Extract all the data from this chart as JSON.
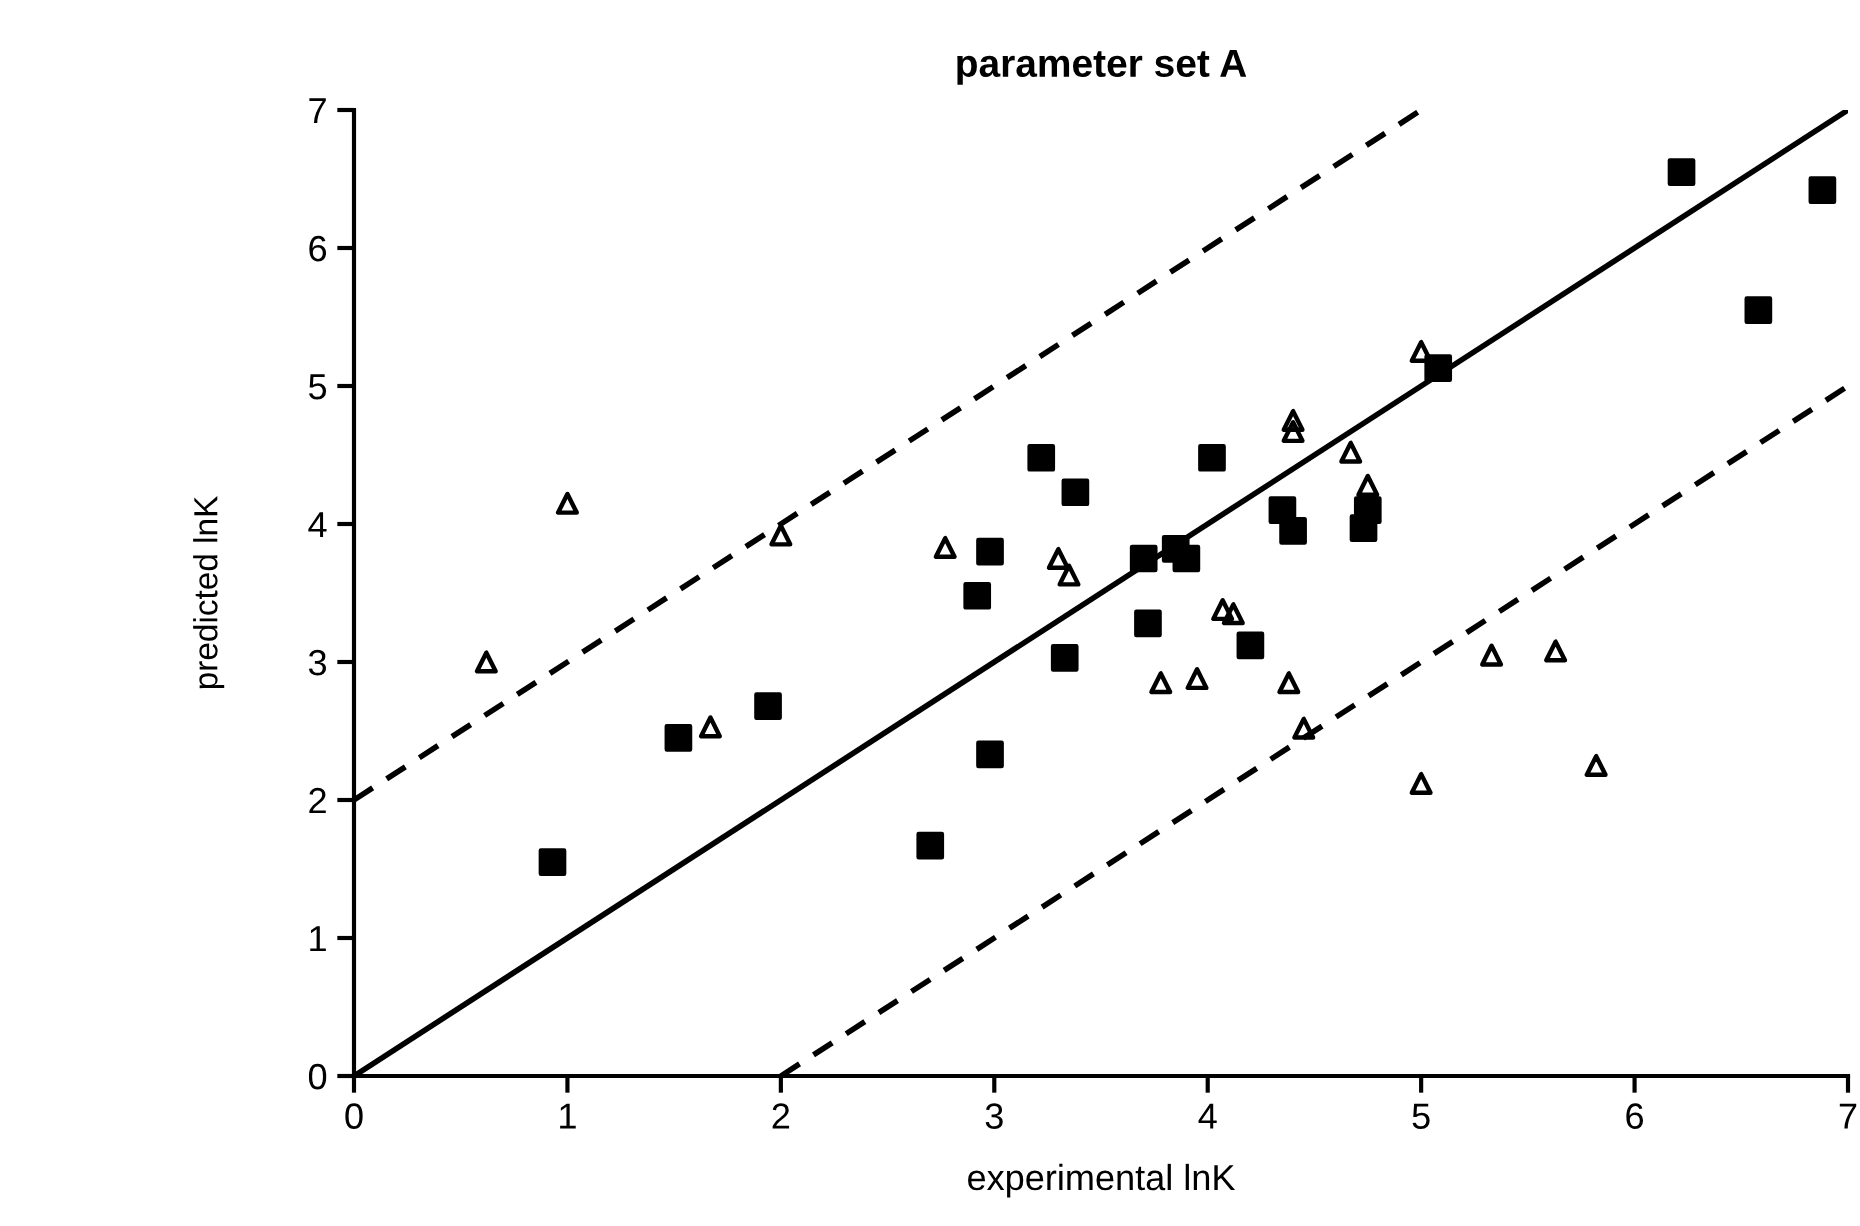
{
  "chart_data": {
    "type": "scatter",
    "title": "parameter set A",
    "xlabel": "experimental lnK",
    "ylabel": "predicted lnK",
    "xlim": [
      0,
      7
    ],
    "ylim": [
      0,
      7
    ],
    "xticks": [
      0,
      1,
      2,
      3,
      4,
      5,
      6,
      7
    ],
    "yticks": [
      0,
      1,
      2,
      3,
      4,
      5,
      6,
      7
    ],
    "grid": false,
    "legend": false,
    "series": [
      {
        "marker": "square",
        "color": "#000000",
        "x": [
          0.93,
          1.52,
          1.94,
          2.7,
          2.92,
          2.98,
          2.98,
          3.22,
          3.33,
          3.38,
          3.7,
          3.72,
          3.85,
          3.9,
          4.02,
          4.2,
          4.35,
          4.4,
          4.75,
          4.73,
          5.08,
          6.22,
          6.58,
          6.88
        ],
        "values": [
          1.55,
          2.45,
          2.68,
          1.67,
          3.48,
          3.8,
          2.33,
          4.48,
          3.03,
          4.23,
          3.75,
          3.28,
          3.82,
          3.75,
          4.48,
          3.12,
          4.1,
          3.95,
          4.1,
          3.97,
          5.13,
          6.55,
          5.55,
          6.42
        ]
      },
      {
        "marker": "triangle",
        "color": "#000000",
        "x": [
          0.62,
          1.0,
          1.67,
          2.0,
          2.77,
          3.3,
          3.35,
          3.78,
          3.95,
          4.07,
          4.12,
          4.38,
          4.4,
          4.4,
          4.45,
          4.67,
          4.75,
          5.0,
          5.0,
          5.33,
          5.63,
          5.82
        ],
        "values": [
          3.0,
          4.15,
          2.53,
          3.92,
          3.83,
          3.75,
          3.63,
          2.85,
          2.88,
          3.38,
          3.35,
          2.85,
          4.75,
          4.67,
          2.52,
          4.52,
          4.28,
          5.25,
          2.12,
          3.05,
          3.08,
          2.25
        ]
      },
      {
        "type": "line",
        "line_style": "solid",
        "color": "#000000",
        "x": [
          0,
          7
        ],
        "values": [
          0,
          7
        ]
      },
      {
        "type": "line",
        "line_style": "dashed",
        "color": "#000000",
        "x": [
          0,
          5
        ],
        "values": [
          2,
          7
        ]
      },
      {
        "type": "line",
        "line_style": "dashed",
        "color": "#000000",
        "x": [
          2,
          7
        ],
        "values": [
          0,
          5
        ]
      }
    ]
  }
}
